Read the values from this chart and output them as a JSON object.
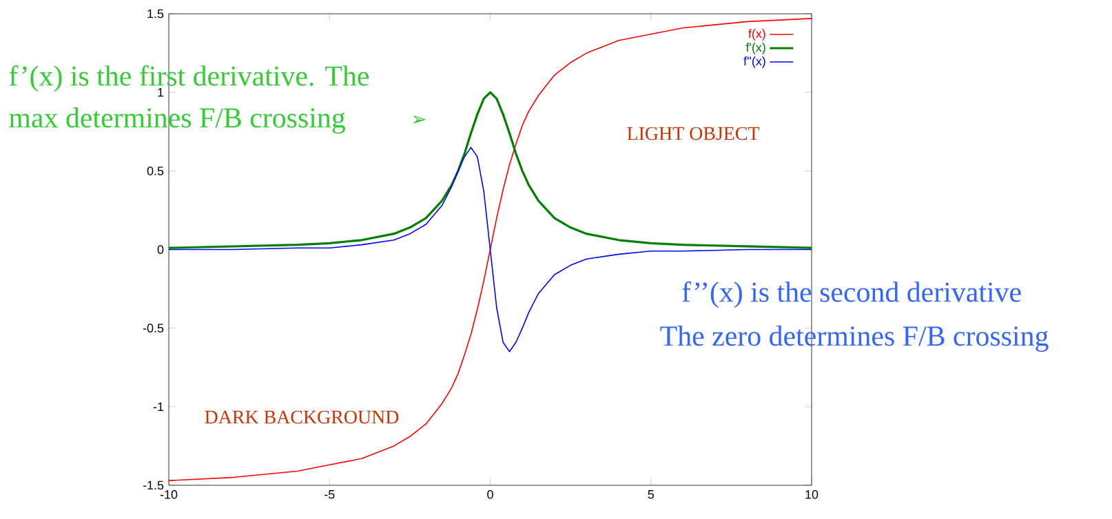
{
  "chart_data": {
    "type": "line",
    "x": [
      -10,
      -8,
      -6,
      -5,
      -4,
      -3,
      -2.5,
      -2,
      -1.5,
      -1.2,
      -1,
      -0.8,
      -0.6,
      -0.4,
      -0.2,
      0,
      0.2,
      0.4,
      0.6,
      0.8,
      1,
      1.2,
      1.5,
      2,
      2.5,
      3,
      4,
      5,
      6,
      8,
      10
    ],
    "series": [
      {
        "name": "f(x)",
        "color": "#ff0000",
        "values": [
          -1.47,
          -1.45,
          -1.41,
          -1.37,
          -1.33,
          -1.25,
          -1.19,
          -1.11,
          -0.98,
          -0.88,
          -0.79,
          -0.67,
          -0.54,
          -0.38,
          -0.2,
          0,
          0.2,
          0.38,
          0.54,
          0.67,
          0.79,
          0.88,
          0.98,
          1.11,
          1.19,
          1.25,
          1.33,
          1.37,
          1.41,
          1.45,
          1.47
        ]
      },
      {
        "name": "f'(x)",
        "color": "#008000",
        "values": [
          0.01,
          0.02,
          0.03,
          0.04,
          0.06,
          0.1,
          0.14,
          0.2,
          0.31,
          0.41,
          0.5,
          0.61,
          0.74,
          0.86,
          0.96,
          1,
          0.96,
          0.86,
          0.74,
          0.61,
          0.5,
          0.41,
          0.31,
          0.2,
          0.14,
          0.1,
          0.06,
          0.04,
          0.03,
          0.02,
          0.01
        ]
      },
      {
        "name": "f''(x)",
        "color": "#0000ff",
        "values": [
          0,
          0,
          0.01,
          0.01,
          0.03,
          0.06,
          0.1,
          0.16,
          0.28,
          0.4,
          0.5,
          0.59,
          0.65,
          0.59,
          0.37,
          0,
          -0.37,
          -0.59,
          -0.65,
          -0.59,
          -0.5,
          -0.4,
          -0.28,
          -0.16,
          -0.1,
          -0.06,
          -0.03,
          -0.01,
          -0.01,
          0,
          0
        ]
      }
    ],
    "xlim": [
      -10,
      10
    ],
    "xticks": [
      -10,
      -5,
      0,
      5,
      10
    ],
    "ylim": [
      -1.5,
      1.5
    ],
    "yticks": [
      -1.5,
      -1,
      -0.5,
      0,
      0.5,
      1,
      1.5
    ],
    "legend": "top right",
    "grid": false,
    "marker": "none",
    "line_style": "solid",
    "annotations": [
      "f’(x) is the first derivative. The",
      "max determines F/B crossing",
      "➢",
      "LIGHT OBJECT",
      "DARK BACKGROUND",
      "f’’(x) is the second derivative",
      "The zero determines F/B crossing"
    ]
  }
}
